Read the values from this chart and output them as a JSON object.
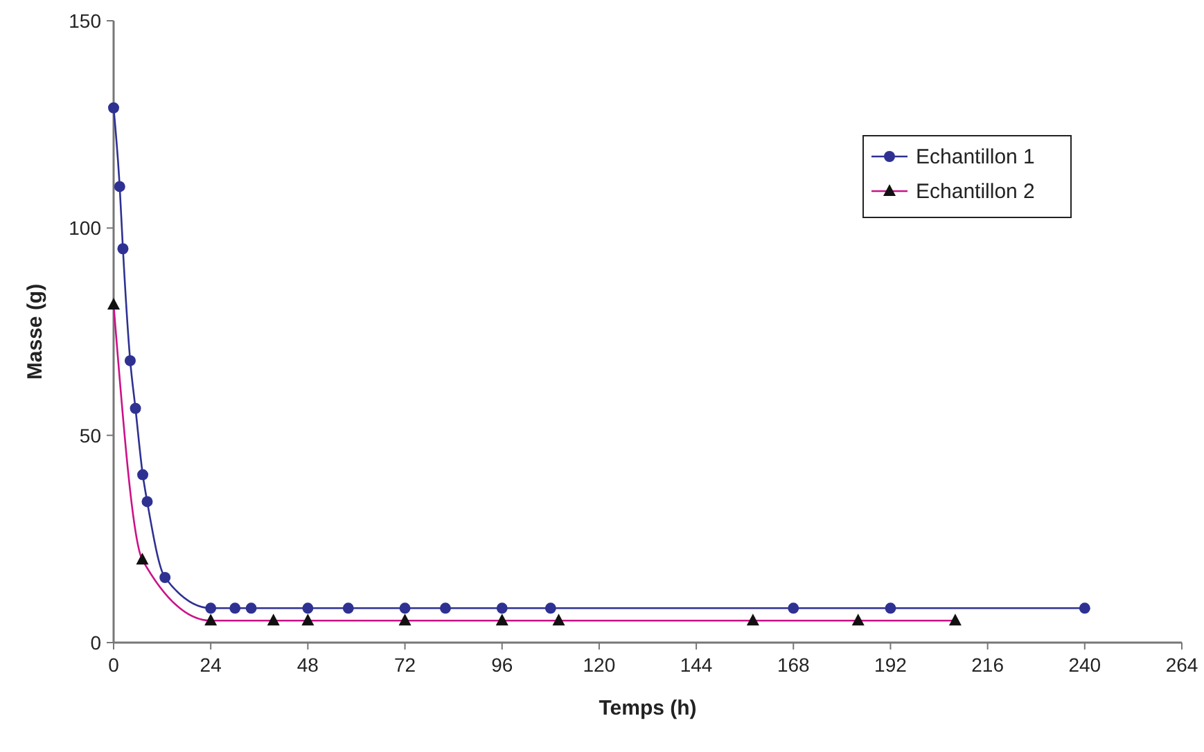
{
  "chart_data": {
    "type": "line",
    "xlabel": "Temps (h)",
    "ylabel": "Masse (g)",
    "xlim": [
      0,
      264
    ],
    "ylim": [
      0,
      150
    ],
    "xticks": [
      0,
      24,
      48,
      72,
      96,
      120,
      144,
      168,
      192,
      216,
      240,
      264
    ],
    "yticks": [
      0,
      50,
      100,
      150
    ],
    "grid": false,
    "legend": "top right",
    "line_style": "solid",
    "series": [
      {
        "name": "Echantillon 1",
        "color": "#2e3192",
        "marker": "circle",
        "x": [
          0,
          1.5,
          2.3,
          4.1,
          5.4,
          7.2,
          8.3,
          12.7,
          24,
          30,
          34,
          48,
          58,
          72,
          82,
          96,
          108,
          168,
          192,
          240
        ],
        "values": [
          129,
          110,
          95,
          68,
          56.5,
          40.5,
          34,
          15.7,
          8.3,
          8.3,
          8.3,
          8.3,
          8.3,
          8.3,
          8.3,
          8.3,
          8.3,
          8.3,
          8.3,
          8.3
        ]
      },
      {
        "name": "Echantillon 2",
        "color": "#cc1188",
        "marker": "triangle",
        "x": [
          0,
          7.1,
          24,
          39.5,
          48,
          72,
          96,
          110,
          158,
          184,
          208
        ],
        "values": [
          81.5,
          20,
          5.3,
          5.3,
          5.3,
          5.3,
          5.3,
          5.3,
          5.3,
          5.3,
          5.3
        ]
      }
    ]
  }
}
